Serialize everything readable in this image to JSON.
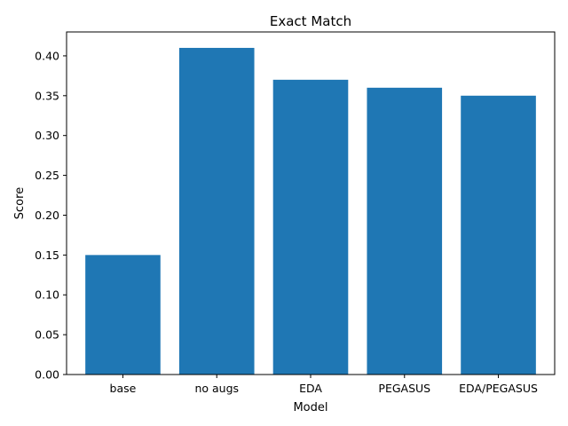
{
  "chart_data": {
    "type": "bar",
    "title": "Exact Match",
    "xlabel": "Model",
    "ylabel": "Score",
    "categories": [
      "base",
      "no augs",
      "EDA",
      "PEGASUS",
      "EDA/PEGASUS"
    ],
    "values": [
      0.15,
      0.41,
      0.37,
      0.36,
      0.35
    ],
    "ylim": [
      0,
      0.43
    ],
    "yticks": [
      "0.00",
      "0.05",
      "0.10",
      "0.15",
      "0.20",
      "0.25",
      "0.30",
      "0.35",
      "0.40"
    ],
    "bar_color": "#1f77b4",
    "grid": false,
    "legend": "none"
  }
}
